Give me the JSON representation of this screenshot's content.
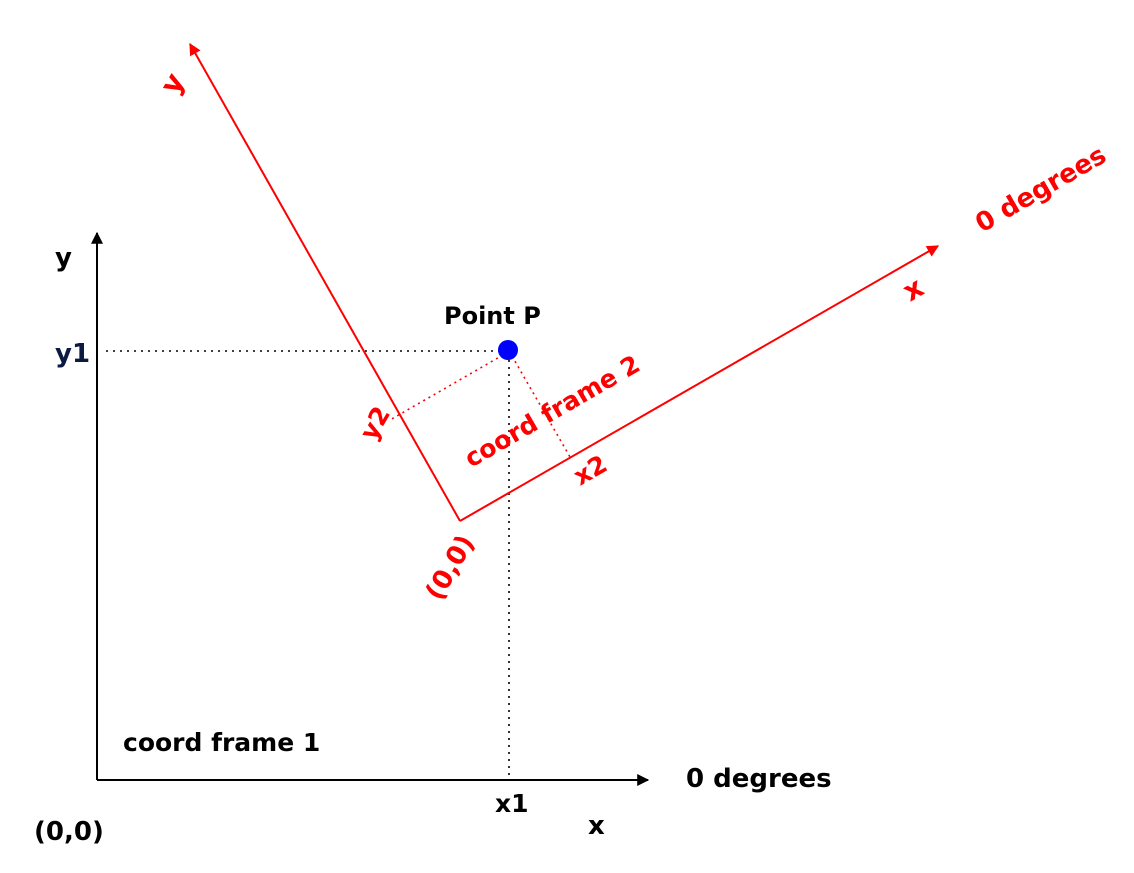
{
  "frame1": {
    "name": "coord frame 1",
    "origin_label": "(0,0)",
    "x_axis_label": "x",
    "y_axis_label": "y",
    "zero_degrees_label": "0 degrees",
    "x1_label": "x1",
    "y1_label": "y1",
    "color": "#000000"
  },
  "frame2": {
    "name": "coord frame 2",
    "origin_label": "(0,0)",
    "x_axis_label": "x",
    "y_axis_label": "y",
    "zero_degrees_label": "0 degrees",
    "x2_label": "x2",
    "y2_label": "y2",
    "color": "#ff0000"
  },
  "point": {
    "label": "Point P",
    "color": "#0000ff"
  }
}
